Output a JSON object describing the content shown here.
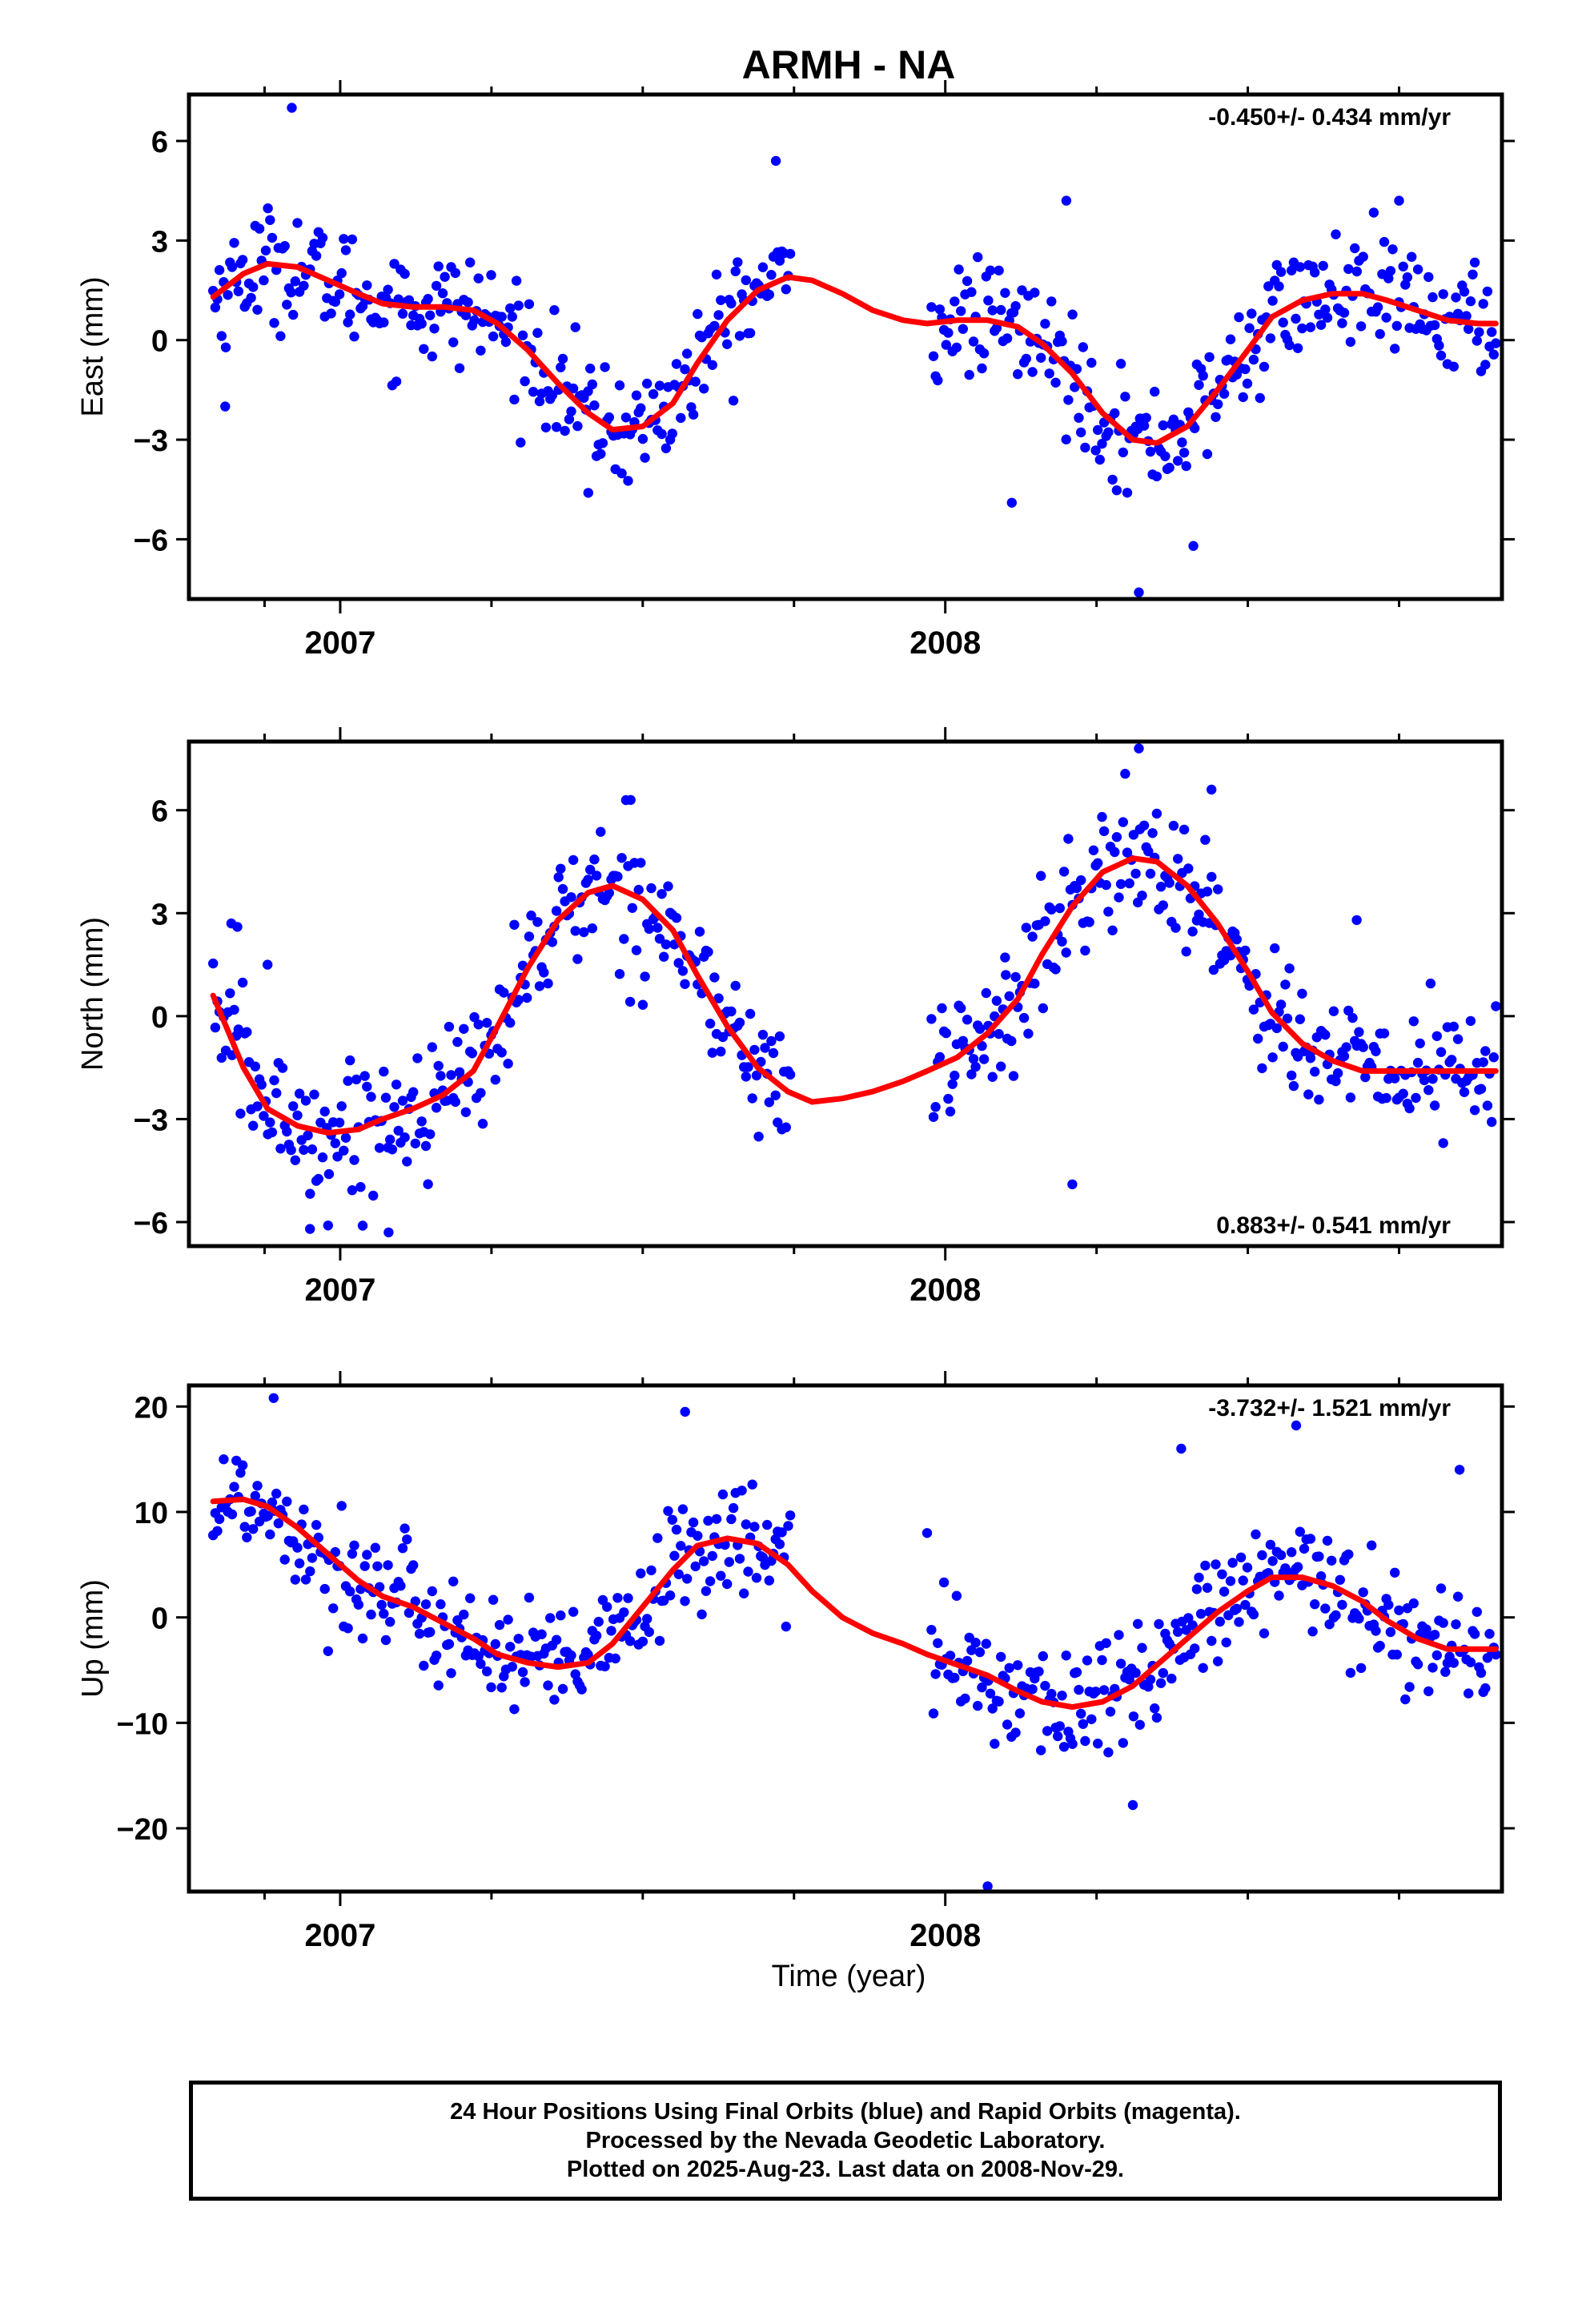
{
  "title": "ARMH - NA",
  "colors": {
    "points": "#0000ff",
    "fit": "#ff0000",
    "frame": "#000000"
  },
  "x_axis": {
    "label": "Time (year)",
    "year_labels": [
      "2007",
      "2008"
    ]
  },
  "caption": [
    "24 Hour Positions Using Final Orbits (blue) and Rapid Orbits (magenta).",
    "Processed by the Nevada Geodetic Laboratory.",
    "Plotted on 2025-Aug-23. Last data on 2008-Nov-29."
  ],
  "chart_data": [
    {
      "type": "scatter",
      "component": "east",
      "ylabel": "East (mm)",
      "rate": "-0.450+/- 0.434 mm/yr",
      "rate_position": "top-right",
      "xlim": [
        2006.75,
        2008.92
      ],
      "ylim": [
        -7.8,
        7.4
      ],
      "yticks": [
        6,
        3,
        0,
        -3,
        -6
      ],
      "ytick_labels": [
        "6",
        "3",
        "0",
        "−3",
        "−6"
      ],
      "gaps": [
        [
          2007.747,
          2007.975
        ]
      ],
      "data_range": [
        2006.79,
        2008.91
      ],
      "series": [
        {
          "name": "fit",
          "style": "line",
          "x": [
            2006.79,
            2006.84,
            2006.88,
            2006.93,
            2006.98,
            2007.03,
            2007.07,
            2007.12,
            2007.17,
            2007.22,
            2007.26,
            2007.31,
            2007.36,
            2007.41,
            2007.45,
            2007.5,
            2007.55,
            2007.59,
            2007.64,
            2007.69,
            2007.74,
            2007.78,
            2007.83,
            2007.88,
            2007.93,
            2007.97,
            2008.02,
            2008.07,
            2008.12,
            2008.16,
            2008.21,
            2008.26,
            2008.31,
            2008.35,
            2008.4,
            2008.45,
            2008.5,
            2008.54,
            2008.59,
            2008.64,
            2008.69,
            2008.73,
            2008.78,
            2008.83,
            2008.88,
            2008.91
          ],
          "y": [
            1.3,
            2.0,
            2.3,
            2.2,
            1.8,
            1.4,
            1.1,
            1.0,
            1.0,
            0.9,
            0.5,
            -0.3,
            -1.3,
            -2.2,
            -2.7,
            -2.6,
            -1.9,
            -0.7,
            0.6,
            1.5,
            1.9,
            1.8,
            1.4,
            0.9,
            0.6,
            0.5,
            0.6,
            0.6,
            0.4,
            -0.1,
            -1.0,
            -2.2,
            -3.0,
            -3.1,
            -2.6,
            -1.5,
            -0.3,
            0.7,
            1.2,
            1.4,
            1.4,
            1.2,
            0.9,
            0.6,
            0.5,
            0.5
          ]
        },
        {
          "name": "points",
          "style": "points",
          "count": 610,
          "noise_sd": 0.85,
          "outliers": [
            [
              2006.92,
              7.0
            ],
            [
              2007.72,
              5.4
            ],
            [
              2008.2,
              4.2
            ],
            [
              2008.75,
              4.2
            ],
            [
              2008.11,
              -4.9
            ],
            [
              2008.32,
              -7.6
            ],
            [
              2008.41,
              -6.2
            ],
            [
              2007.41,
              -4.6
            ],
            [
              2006.81,
              -2.0
            ]
          ]
        }
      ]
    },
    {
      "type": "scatter",
      "component": "north",
      "ylabel": "North (mm)",
      "rate": "0.883+/- 0.541 mm/yr",
      "rate_position": "bottom-right",
      "xlim": [
        2006.75,
        2008.92
      ],
      "ylim": [
        -6.7,
        8.0
      ],
      "yticks": [
        6,
        3,
        0,
        -3,
        -6
      ],
      "ytick_labels": [
        "6",
        "3",
        "0",
        "−3",
        "−6"
      ],
      "gaps": [
        [
          2007.747,
          2007.975
        ]
      ],
      "data_range": [
        2006.79,
        2008.91
      ],
      "series": [
        {
          "name": "fit",
          "style": "line",
          "x": [
            2006.79,
            2006.84,
            2006.88,
            2006.93,
            2006.98,
            2007.03,
            2007.07,
            2007.12,
            2007.17,
            2007.22,
            2007.26,
            2007.31,
            2007.36,
            2007.41,
            2007.45,
            2007.5,
            2007.55,
            2007.59,
            2007.64,
            2007.69,
            2007.74,
            2007.78,
            2007.83,
            2007.88,
            2007.93,
            2007.97,
            2008.02,
            2008.07,
            2008.12,
            2008.16,
            2008.21,
            2008.26,
            2008.31,
            2008.35,
            2008.4,
            2008.45,
            2008.5,
            2008.54,
            2008.59,
            2008.64,
            2008.69,
            2008.73,
            2008.78,
            2008.83,
            2008.88,
            2008.91
          ],
          "y": [
            0.6,
            -1.5,
            -2.7,
            -3.2,
            -3.4,
            -3.3,
            -3.0,
            -2.7,
            -2.3,
            -1.6,
            -0.3,
            1.4,
            2.8,
            3.6,
            3.8,
            3.4,
            2.5,
            1.2,
            -0.3,
            -1.5,
            -2.2,
            -2.5,
            -2.4,
            -2.2,
            -1.9,
            -1.6,
            -1.2,
            -0.5,
            0.5,
            1.8,
            3.2,
            4.2,
            4.6,
            4.5,
            3.8,
            2.7,
            1.3,
            0.1,
            -0.8,
            -1.3,
            -1.6,
            -1.6,
            -1.6,
            -1.6,
            -1.6,
            -1.6
          ]
        },
        {
          "name": "points",
          "style": "points",
          "count": 610,
          "noise_sd": 0.95,
          "outliers": [
            [
              2006.82,
              2.7
            ],
            [
              2006.83,
              2.6
            ],
            [
              2006.88,
              1.5
            ],
            [
              2006.95,
              -6.2
            ],
            [
              2006.98,
              -6.1
            ],
            [
              2007.08,
              -6.3
            ],
            [
              2007.48,
              6.3
            ],
            [
              2008.32,
              7.8
            ],
            [
              2008.44,
              6.6
            ],
            [
              2008.21,
              -4.9
            ],
            [
              2008.1,
              1.2
            ],
            [
              2008.68,
              2.8
            ]
          ]
        }
      ]
    },
    {
      "type": "scatter",
      "component": "up",
      "ylabel": "Up (mm)",
      "rate": "-3.732+/- 1.521 mm/yr",
      "rate_position": "top-right",
      "xlim": [
        2006.75,
        2008.92
      ],
      "ylim": [
        -26.0,
        22.0
      ],
      "yticks": [
        20,
        10,
        0,
        -10,
        -20
      ],
      "ytick_labels": [
        "20",
        "10",
        "0",
        "−10",
        "−20"
      ],
      "gaps": [
        [
          2007.747,
          2007.975
        ]
      ],
      "data_range": [
        2006.79,
        2008.91
      ],
      "series": [
        {
          "name": "fit",
          "style": "line",
          "x": [
            2006.79,
            2006.84,
            2006.88,
            2006.93,
            2006.98,
            2007.03,
            2007.07,
            2007.12,
            2007.17,
            2007.22,
            2007.26,
            2007.31,
            2007.36,
            2007.41,
            2007.45,
            2007.5,
            2007.55,
            2007.59,
            2007.64,
            2007.69,
            2007.74,
            2007.78,
            2007.83,
            2007.88,
            2007.93,
            2007.97,
            2008.02,
            2008.07,
            2008.12,
            2008.16,
            2008.21,
            2008.26,
            2008.31,
            2008.35,
            2008.4,
            2008.45,
            2008.5,
            2008.54,
            2008.59,
            2008.64,
            2008.69,
            2008.73,
            2008.78,
            2008.83,
            2008.88,
            2008.91
          ],
          "y": [
            11.0,
            11.2,
            10.5,
            8.5,
            6.0,
            3.5,
            2.0,
            1.0,
            -0.5,
            -2.0,
            -3.5,
            -4.3,
            -4.7,
            -4.3,
            -2.5,
            1.0,
            4.5,
            6.8,
            7.5,
            7.0,
            5.0,
            2.5,
            0.0,
            -1.5,
            -2.5,
            -3.5,
            -4.5,
            -5.5,
            -7.0,
            -8.0,
            -8.5,
            -8.0,
            -6.5,
            -4.5,
            -2.0,
            0.5,
            2.5,
            3.8,
            3.8,
            3.0,
            1.5,
            -0.3,
            -2.0,
            -3.0,
            -3.0,
            -3.0
          ]
        },
        {
          "name": "points",
          "style": "points",
          "count": 610,
          "noise_sd": 2.8,
          "outliers": [
            [
              2006.89,
              20.8
            ],
            [
              2007.57,
              19.5
            ],
            [
              2008.07,
              -25.5
            ],
            [
              2008.31,
              -17.8
            ],
            [
              2008.39,
              16.0
            ],
            [
              2008.58,
              18.2
            ],
            [
              2008.85,
              14.0
            ],
            [
              2006.98,
              -3.2
            ],
            [
              2007.97,
              8.0
            ]
          ]
        }
      ]
    }
  ]
}
